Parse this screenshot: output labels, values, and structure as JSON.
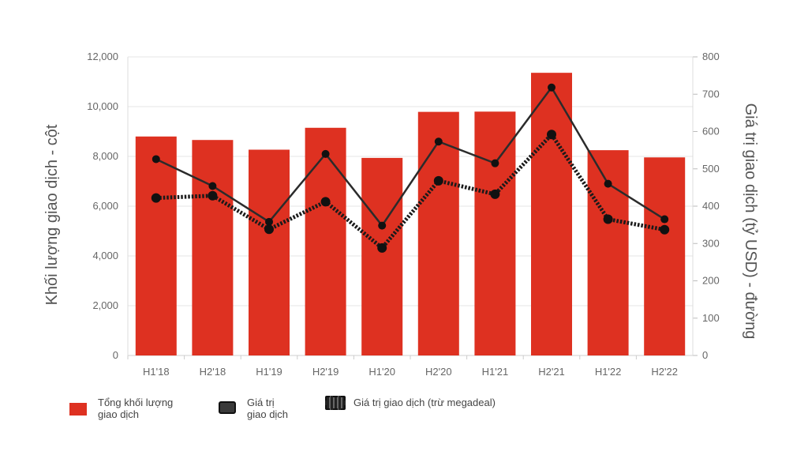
{
  "chart_data": {
    "type": "bar",
    "categories": [
      "H1'18",
      "H2'18",
      "H1'19",
      "H2'19",
      "H1'20",
      "H2'20",
      "H1'21",
      "H2'21",
      "H1'22",
      "H2'22"
    ],
    "series": [
      {
        "name": "Tổng khối lượng giao dịch",
        "type": "bar",
        "axis": "left",
        "values": [
          8800,
          8660,
          8270,
          9150,
          7940,
          9790,
          9800,
          11360,
          8250,
          7960
        ]
      },
      {
        "name": "Giá trị giao dịch",
        "type": "line",
        "axis": "right",
        "values": [
          526,
          454,
          358,
          540,
          348,
          573,
          515,
          718,
          460,
          365
        ]
      },
      {
        "name": "Giá trị giao dịch (trừ megadeal)",
        "type": "line-dotted",
        "axis": "right",
        "values": [
          422,
          428,
          338,
          412,
          288,
          468,
          432,
          592,
          365,
          337
        ]
      }
    ],
    "ylabel": "Khối lượng giao dịch - cột",
    "y2label": "Giá trị giao dịch (tỷ USD) - đường",
    "ylim": [
      0,
      12000
    ],
    "y2lim": [
      0,
      800
    ],
    "yticks": [
      "0",
      "2,000",
      "4,000",
      "6,000",
      "8,000",
      "10,000",
      "12,000"
    ],
    "y2ticks": [
      "0",
      "100",
      "200",
      "300",
      "400",
      "500",
      "600",
      "700",
      "800"
    ],
    "grid": true,
    "legend_position": "bottom-left",
    "colors": {
      "bar": "#de3121",
      "line": "#2b2b2b",
      "dotted": "#1a1a1a",
      "grid": "#e6e6e6"
    }
  },
  "legend": {
    "bar_line1": "Tổng khối lượng",
    "bar_line2": "giao dịch",
    "value_line1": "Giá trị",
    "value_line2": "giao dịch",
    "megadeal": "Giá trị giao dịch (trừ megadeal)"
  }
}
